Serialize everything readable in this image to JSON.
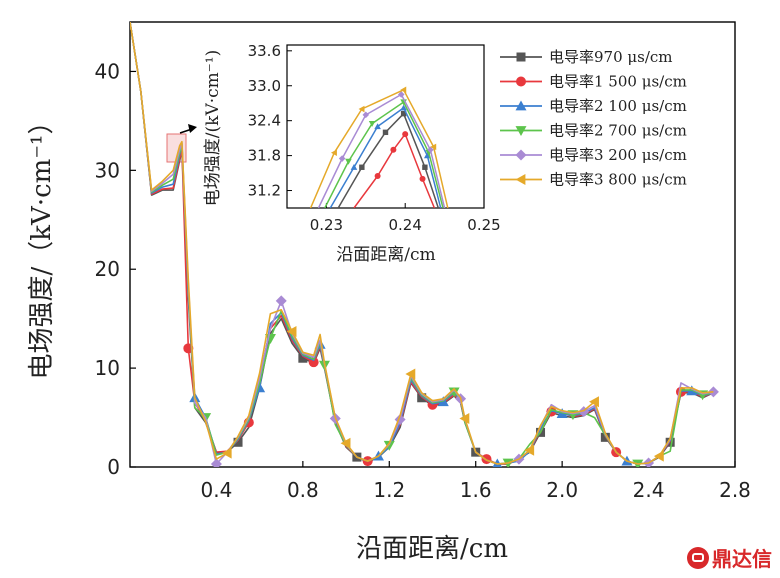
{
  "chart_data": [
    {
      "type": "line",
      "xlabel": "沿面距离/cm",
      "ylabel": "电场强度/（kV·cm⁻¹）",
      "xlim": [
        0.0,
        2.8
      ],
      "ylim": [
        0,
        45
      ],
      "x_ticks": [
        "0.4",
        "0.8",
        "1.2",
        "1.6",
        "2.0",
        "2.4",
        "2.8"
      ],
      "y_ticks": [
        "0",
        "10",
        "20",
        "30",
        "40"
      ],
      "legend_position": "top-right",
      "series": [
        {
          "name": "电导率970 μs/cm",
          "color": "#555555",
          "marker": "square",
          "x": [
            0.0,
            0.05,
            0.1,
            0.15,
            0.2,
            0.23,
            0.24,
            0.27,
            0.3,
            0.35,
            0.4,
            0.45,
            0.5,
            0.55,
            0.6,
            0.65,
            0.7,
            0.75,
            0.8,
            0.85,
            0.88,
            0.9,
            0.95,
            1.0,
            1.05,
            1.1,
            1.15,
            1.2,
            1.25,
            1.3,
            1.35,
            1.4,
            1.45,
            1.5,
            1.53,
            1.55,
            1.6,
            1.65,
            1.7,
            1.75,
            1.8,
            1.85,
            1.9,
            1.95,
            2.0,
            2.05,
            2.1,
            2.15,
            2.2,
            2.25,
            2.3,
            2.35,
            2.4,
            2.45,
            2.5,
            2.55,
            2.6,
            2.65,
            2.7
          ],
          "y": [
            45,
            38,
            27.5,
            28,
            28,
            31,
            32,
            17,
            6,
            4.5,
            1.5,
            1.5,
            2.5,
            4,
            8,
            13.5,
            15,
            12.5,
            11,
            10.5,
            12,
            10,
            4.5,
            2,
            1,
            0.5,
            1,
            2,
            4,
            8.5,
            7,
            6.2,
            6.4,
            7.2,
            6.5,
            4.5,
            1.5,
            0.8,
            0.3,
            0.3,
            0.8,
            1.5,
            3.5,
            5.5,
            5.2,
            5,
            5.2,
            5.8,
            3,
            1.5,
            0.6,
            0.3,
            0.4,
            1,
            2.5,
            7.5,
            7.5,
            7,
            7.5
          ]
        },
        {
          "name": "电导率1 500 μs/cm",
          "color": "#e8383d",
          "marker": "circle",
          "x": [
            0.0,
            0.05,
            0.1,
            0.15,
            0.2,
            0.23,
            0.24,
            0.27,
            0.3,
            0.35,
            0.4,
            0.45,
            0.5,
            0.55,
            0.6,
            0.65,
            0.7,
            0.75,
            0.8,
            0.85,
            0.88,
            0.9,
            0.95,
            1.0,
            1.05,
            1.1,
            1.15,
            1.2,
            1.25,
            1.3,
            1.35,
            1.4,
            1.45,
            1.5,
            1.53,
            1.55,
            1.6,
            1.65,
            1.7,
            1.75,
            1.8,
            1.85,
            1.9,
            1.95,
            2.0,
            2.05,
            2.1,
            2.15,
            2.2,
            2.25,
            2.3,
            2.35,
            2.4,
            2.45,
            2.5,
            2.55,
            2.6,
            2.65,
            2.7
          ],
          "y": [
            45,
            38,
            27.6,
            28.1,
            28.2,
            31.2,
            32.2,
            12,
            6.5,
            4.7,
            1.5,
            1.6,
            2.7,
            4.5,
            9,
            14,
            15.3,
            12.8,
            11.2,
            10.6,
            12.2,
            10.2,
            4.6,
            2.1,
            1,
            0.6,
            1.1,
            2.2,
            4.3,
            8.6,
            7.1,
            6.3,
            6.5,
            7.3,
            6.6,
            4.6,
            1.5,
            0.8,
            0.3,
            0.3,
            0.8,
            1.6,
            3.7,
            5.6,
            5.5,
            5.1,
            5.3,
            5.9,
            3.1,
            1.5,
            0.6,
            0.3,
            0.4,
            1.1,
            2.6,
            7.6,
            7.6,
            7.1,
            7.5
          ]
        },
        {
          "name": "电导率2 100 μs/cm",
          "color": "#3b7fd0",
          "marker": "triangle-up",
          "x": [
            0.0,
            0.05,
            0.1,
            0.15,
            0.2,
            0.23,
            0.24,
            0.27,
            0.3,
            0.35,
            0.4,
            0.45,
            0.5,
            0.55,
            0.6,
            0.65,
            0.7,
            0.75,
            0.8,
            0.85,
            0.88,
            0.9,
            0.95,
            1.0,
            1.05,
            1.1,
            1.15,
            1.2,
            1.25,
            1.3,
            1.35,
            1.4,
            1.45,
            1.5,
            1.53,
            1.55,
            1.6,
            1.65,
            1.7,
            1.75,
            1.8,
            1.85,
            1.9,
            1.95,
            2.0,
            2.05,
            2.1,
            2.15,
            2.2,
            2.25,
            2.3,
            2.35,
            2.4,
            2.45,
            2.5,
            2.55,
            2.6,
            2.65,
            2.7
          ],
          "y": [
            45,
            38,
            27.7,
            28.3,
            28.6,
            31.6,
            32.6,
            17.5,
            7,
            5,
            1.3,
            1.5,
            2.8,
            4.7,
            8,
            14.5,
            15.6,
            13,
            11.3,
            10.8,
            12.4,
            10.2,
            4.8,
            2.2,
            1,
            0.6,
            1.1,
            2,
            4.5,
            8.8,
            7.2,
            6.4,
            6.6,
            7.5,
            6.7,
            4.7,
            1.5,
            0.7,
            0.3,
            0.4,
            0.6,
            1.6,
            3.9,
            5.7,
            5.4,
            5.2,
            5.4,
            6.0,
            3.2,
            1.5,
            0.6,
            0.3,
            0.4,
            1.1,
            2.7,
            7.7,
            7.7,
            7.2,
            7.5
          ]
        },
        {
          "name": "电导率2 700 μs/cm",
          "color": "#5dc44c",
          "marker": "triangle-down",
          "x": [
            0.0,
            0.05,
            0.1,
            0.15,
            0.2,
            0.23,
            0.24,
            0.27,
            0.3,
            0.35,
            0.4,
            0.45,
            0.5,
            0.55,
            0.6,
            0.65,
            0.7,
            0.75,
            0.8,
            0.85,
            0.88,
            0.9,
            0.95,
            1.0,
            1.05,
            1.1,
            1.15,
            1.2,
            1.25,
            1.3,
            1.35,
            1.4,
            1.45,
            1.5,
            1.53,
            1.55,
            1.6,
            1.65,
            1.7,
            1.75,
            1.8,
            1.85,
            1.9,
            1.95,
            2.0,
            2.05,
            2.1,
            2.15,
            2.2,
            2.25,
            2.3,
            2.35,
            2.4,
            2.45,
            2.5,
            2.55,
            2.6,
            2.65,
            2.7
          ],
          "y": [
            45,
            38,
            27.8,
            28.5,
            29.1,
            31.8,
            32.7,
            18,
            6,
            5,
            1.2,
            1.5,
            2.9,
            4.8,
            8.5,
            13,
            15.8,
            13.2,
            11.4,
            10.9,
            12.6,
            10.3,
            4.3,
            2.2,
            1,
            0.6,
            1.1,
            2.2,
            5,
            9,
            7.3,
            6.5,
            6.7,
            7.6,
            6.8,
            4.5,
            1.5,
            0.7,
            0.3,
            0.4,
            0.8,
            2.3,
            3.5,
            5.8,
            5.5,
            5.3,
            5.5,
            5,
            3.2,
            1.5,
            0.6,
            0.3,
            0.4,
            1.1,
            1.6,
            7.8,
            7.8,
            7.3,
            7.5
          ]
        },
        {
          "name": "电导率3 200 μs/cm",
          "color": "#a98bd4",
          "marker": "diamond",
          "x": [
            0.0,
            0.05,
            0.1,
            0.15,
            0.2,
            0.23,
            0.24,
            0.27,
            0.3,
            0.35,
            0.4,
            0.45,
            0.5,
            0.55,
            0.6,
            0.65,
            0.7,
            0.75,
            0.8,
            0.85,
            0.88,
            0.9,
            0.95,
            1.0,
            1.05,
            1.1,
            1.15,
            1.2,
            1.25,
            1.3,
            1.35,
            1.4,
            1.45,
            1.5,
            1.53,
            1.55,
            1.6,
            1.65,
            1.7,
            1.75,
            1.8,
            1.85,
            1.9,
            1.95,
            2.0,
            2.05,
            2.1,
            2.15,
            2.2,
            2.25,
            2.3,
            2.35,
            2.4,
            2.45,
            2.5,
            2.55,
            2.6,
            2.65,
            2.7
          ],
          "y": [
            45,
            38,
            27.9,
            28.7,
            29.6,
            32.1,
            32.8,
            18.5,
            6.5,
            5,
            0.3,
            1.5,
            3,
            5,
            9,
            14,
            16.8,
            13.5,
            11.5,
            11.1,
            12.8,
            10.4,
            4.9,
            2.3,
            1,
            0.6,
            1.1,
            2.3,
            4.8,
            9.2,
            7.4,
            6.6,
            6.8,
            7.8,
            6.9,
            4.8,
            1.5,
            0.7,
            0.3,
            0.4,
            0.8,
            1.7,
            4.1,
            6.3,
            5.6,
            5.4,
            5.6,
            6.2,
            3.3,
            1.5,
            0.6,
            0.3,
            0.4,
            1.1,
            2.8,
            8.5,
            7.9,
            7.4,
            7.6
          ]
        },
        {
          "name": "电导率3 800 μs/cm",
          "color": "#e5a92a",
          "marker": "triangle-left",
          "x": [
            0.0,
            0.05,
            0.1,
            0.15,
            0.2,
            0.23,
            0.24,
            0.27,
            0.3,
            0.35,
            0.4,
            0.45,
            0.5,
            0.55,
            0.6,
            0.65,
            0.7,
            0.75,
            0.8,
            0.85,
            0.88,
            0.9,
            0.95,
            1.0,
            1.05,
            1.1,
            1.15,
            1.2,
            1.25,
            1.3,
            1.35,
            1.4,
            1.45,
            1.5,
            1.53,
            1.55,
            1.6,
            1.65,
            1.7,
            1.75,
            1.8,
            1.85,
            1.9,
            1.95,
            2.0,
            2.05,
            2.1,
            2.15,
            2.2,
            2.25,
            2.3,
            2.35,
            2.4,
            2.45,
            2.5,
            2.55,
            2.6,
            2.65,
            2.7
          ],
          "y": [
            45,
            38,
            28,
            28.9,
            30,
            32.5,
            32.9,
            19,
            7,
            4.6,
            0.8,
            1.4,
            3.1,
            5.2,
            9.5,
            15.5,
            15.9,
            13.7,
            11.6,
            11.3,
            13.4,
            10.5,
            5,
            2.4,
            1,
            0.6,
            1.1,
            2.4,
            5.2,
            9.4,
            7.5,
            6.7,
            6.9,
            7.9,
            7,
            4.9,
            1.5,
            0.7,
            0.3,
            0.4,
            0.8,
            1.7,
            4.2,
            6.1,
            5.7,
            5.5,
            5.7,
            6.6,
            3.4,
            1.5,
            0.6,
            0.3,
            0.4,
            1.1,
            2.9,
            8,
            8,
            7.5,
            7.6
          ]
        }
      ]
    },
    {
      "type": "line",
      "xlabel": "沿面距离/cm",
      "ylabel": "电场强度/(kV·cm⁻¹)",
      "xlim": [
        0.225,
        0.25
      ],
      "ylim": [
        30.9,
        33.7
      ],
      "x_ticks": [
        "0.23",
        "0.24",
        "0.25"
      ],
      "y_ticks": [
        "31.2",
        "31.8",
        "32.4",
        "33.0",
        "33.6"
      ],
      "series": [
        {
          "name": "电导率970 μs/cm",
          "color": "#555555",
          "x": [
            0.2315,
            0.2345,
            0.2375,
            0.2398,
            0.2425,
            0.2442
          ],
          "y": [
            30.9,
            31.6,
            32.2,
            32.52,
            31.6,
            30.9
          ]
        },
        {
          "name": "电导率1 500 μs/cm",
          "color": "#e8383d",
          "x": [
            0.2335,
            0.2365,
            0.2385,
            0.24,
            0.2422,
            0.2437
          ],
          "y": [
            30.9,
            31.45,
            31.9,
            32.17,
            31.4,
            30.9
          ]
        },
        {
          "name": "电导率2 100 μs/cm",
          "color": "#3b7fd0",
          "x": [
            0.2305,
            0.2335,
            0.2365,
            0.2398,
            0.2428,
            0.2445
          ],
          "y": [
            30.9,
            31.6,
            32.3,
            32.62,
            31.8,
            30.9
          ]
        },
        {
          "name": "电导率2 700 μs/cm",
          "color": "#5dc44c",
          "x": [
            0.2298,
            0.2328,
            0.2358,
            0.2398,
            0.243,
            0.2448
          ],
          "y": [
            30.9,
            31.7,
            32.35,
            32.72,
            31.85,
            30.9
          ]
        },
        {
          "name": "电导率3 200 μs/cm",
          "color": "#a98bd4",
          "x": [
            0.229,
            0.232,
            0.235,
            0.2395,
            0.2432,
            0.245
          ],
          "y": [
            30.9,
            31.75,
            32.5,
            32.85,
            31.9,
            30.9
          ]
        },
        {
          "name": "电导率3 800 μs/cm",
          "color": "#e5a92a",
          "x": [
            0.228,
            0.231,
            0.2345,
            0.2398,
            0.2436,
            0.2454
          ],
          "y": [
            30.9,
            31.85,
            32.6,
            32.93,
            31.95,
            30.9
          ]
        }
      ]
    }
  ],
  "watermark": {
    "text": "鼎达信",
    "icon": "logo-icon",
    "color": "#d8282a"
  }
}
